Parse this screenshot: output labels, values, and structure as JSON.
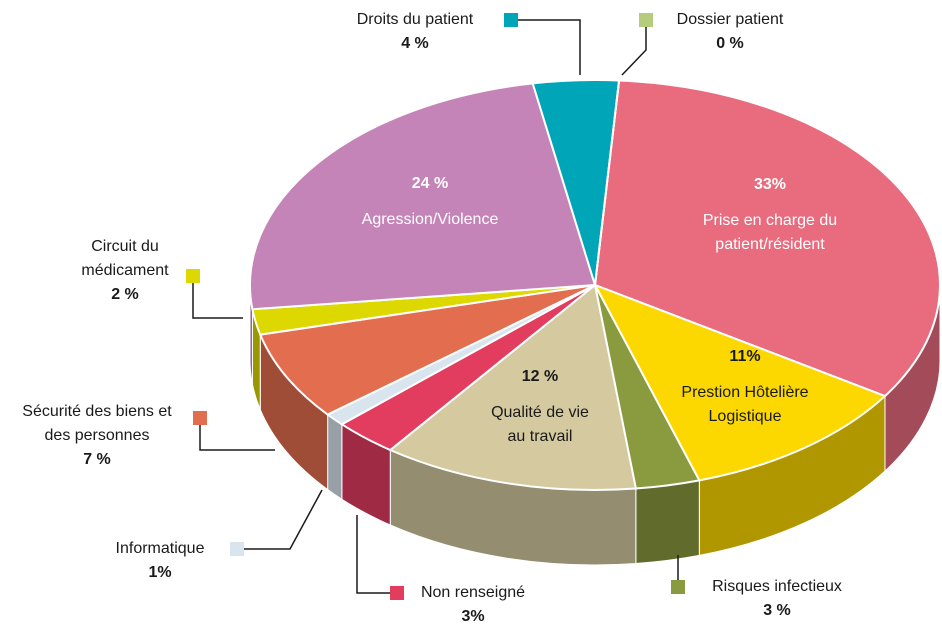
{
  "chart_data": {
    "type": "pie",
    "categories": [
      "Prise en charge du patient/résident",
      "Prestion Hôtelière Logistique",
      "Risques infectieux",
      "Qualité de vie au travail",
      "Non renseigné",
      "Informatique",
      "Sécurité des biens et des personnes",
      "Circuit du médicament",
      "Agression/Violence",
      "Droits du patient",
      "Dossier patient"
    ],
    "values": [
      33,
      11,
      3,
      12,
      3,
      1,
      7,
      2,
      24,
      4,
      0
    ],
    "value_labels": [
      "33%",
      "11%",
      "3 %",
      "12 %",
      "3%",
      "1%",
      "7 %",
      "2 %",
      "24 %",
      "4 %",
      "0 %"
    ],
    "colors": [
      "#e96b7e",
      "#fcd800",
      "#8a9a3f",
      "#d5c9a0",
      "#e23d5f",
      "#d8e4ee",
      "#e36e4f",
      "#dcd800",
      "#c484b8",
      "#00a5b8",
      "#b5cc7e"
    ]
  }
}
